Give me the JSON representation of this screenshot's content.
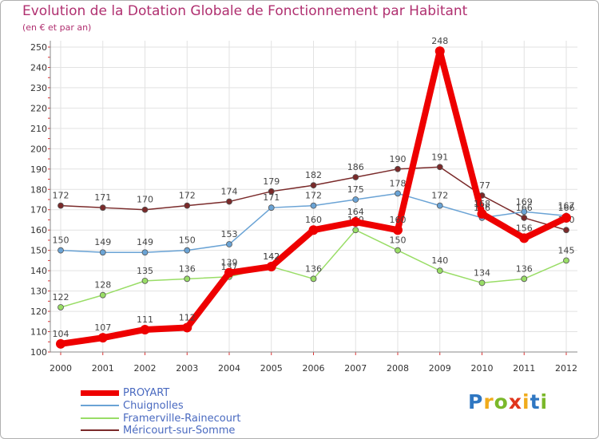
{
  "title": "Evolution de la Dotation Globale de Fonctionnement par Habitant",
  "subtitle": "(en € et par an)",
  "logo": {
    "text": "Proxiti",
    "letters": [
      "P",
      "r",
      "o",
      "x",
      "i",
      "t",
      "i"
    ],
    "colors": [
      "#2f77c2",
      "#f0ab1b",
      "#7bb82a",
      "#e0351c",
      "#f0ab1b",
      "#2f77c2",
      "#7bb82a"
    ]
  },
  "chart_data": {
    "type": "line",
    "title": "Evolution de la Dotation Globale de Fonctionnement par Habitant",
    "subtitle": "(en € et par an)",
    "xlabel": "",
    "ylabel": "",
    "categories": [
      "2000",
      "2001",
      "2002",
      "2003",
      "2004",
      "2005",
      "2006",
      "2007",
      "2008",
      "2009",
      "2010",
      "2011",
      "2012"
    ],
    "ylim": [
      100,
      250
    ],
    "yticks": [
      100,
      110,
      120,
      130,
      140,
      150,
      160,
      170,
      180,
      190,
      200,
      210,
      220,
      230,
      240,
      250
    ],
    "grid": true,
    "legend_position": "bottom-left",
    "series": [
      {
        "name": "Méricourt-sur-Somme",
        "color": "#7a2a2a",
        "values": [
          172,
          171,
          170,
          172,
          174,
          179,
          182,
          186,
          190,
          191,
          177,
          166,
          160
        ],
        "labels": [
          "172",
          "171",
          "170",
          "172",
          "174",
          "179",
          "182",
          "186",
          "190",
          "191",
          "177",
          "166",
          "160"
        ]
      },
      {
        "name": "Framerville-Rainecourt",
        "color": "#99dd66",
        "values": [
          122,
          128,
          135,
          136,
          137,
          142,
          136,
          160,
          150,
          140,
          134,
          136,
          145
        ],
        "labels": [
          "122",
          "128",
          "135",
          "136",
          "137",
          "142",
          "136",
          "160",
          "150",
          "140",
          "134",
          "136",
          "145"
        ]
      },
      {
        "name": "Chuignolles",
        "color": "#6aa3d5",
        "values": [
          150,
          149,
          149,
          150,
          153,
          171,
          172,
          175,
          178,
          172,
          166,
          169,
          167
        ],
        "labels": [
          "150",
          "149",
          "149",
          "150",
          "153",
          "171",
          "172",
          "175",
          "178",
          "172",
          "166",
          "169",
          "167"
        ]
      },
      {
        "name": "PROYART",
        "color": "#ee0000",
        "values": [
          104,
          107,
          111,
          112,
          139,
          142,
          160,
          164,
          160,
          248,
          168,
          156,
          166
        ],
        "labels": [
          "104",
          "107",
          "111",
          "112",
          "139",
          "142",
          "160",
          "164",
          "160",
          "248",
          "168",
          "156",
          "166"
        ]
      }
    ],
    "legend": [
      {
        "name": "PROYART",
        "color": "#ee0000"
      },
      {
        "name": "Chuignolles",
        "color": "#6aa3d5"
      },
      {
        "name": "Framerville-Rainecourt",
        "color": "#99dd66"
      },
      {
        "name": "Méricourt-sur-Somme",
        "color": "#7a2a2a"
      }
    ]
  }
}
